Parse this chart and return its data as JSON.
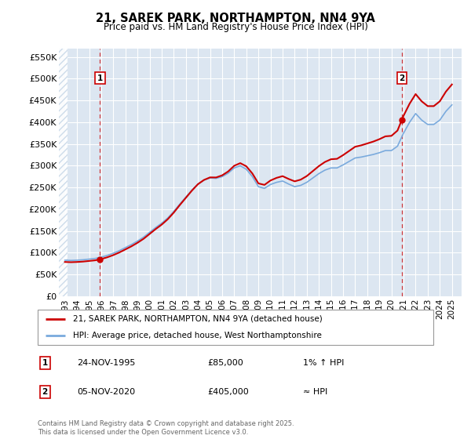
{
  "title": "21, SAREK PARK, NORTHAMPTON, NN4 9YA",
  "subtitle": "Price paid vs. HM Land Registry's House Price Index (HPI)",
  "ylim": [
    0,
    570000
  ],
  "yticks": [
    0,
    50000,
    100000,
    150000,
    200000,
    250000,
    300000,
    350000,
    400000,
    450000,
    500000,
    550000
  ],
  "ytick_labels": [
    "£0",
    "£50K",
    "£100K",
    "£150K",
    "£200K",
    "£250K",
    "£300K",
    "£350K",
    "£400K",
    "£450K",
    "£500K",
    "£550K"
  ],
  "xlim_start": 1992.5,
  "xlim_end": 2025.8,
  "xticks": [
    1993,
    1994,
    1995,
    1996,
    1997,
    1998,
    1999,
    2000,
    2001,
    2002,
    2003,
    2004,
    2005,
    2006,
    2007,
    2008,
    2009,
    2010,
    2011,
    2012,
    2013,
    2014,
    2015,
    2016,
    2017,
    2018,
    2019,
    2020,
    2021,
    2022,
    2023,
    2024,
    2025
  ],
  "bg_color": "#dce6f1",
  "hatch_color": "#c8d8e8",
  "grid_color": "#ffffff",
  "line_color_red": "#cc0000",
  "line_color_blue": "#7aaadd",
  "sale1_x": 1995.9,
  "sale1_y": 85000,
  "sale2_x": 2020.85,
  "sale2_y": 405000,
  "legend_label1": "21, SAREK PARK, NORTHAMPTON, NN4 9YA (detached house)",
  "legend_label2": "HPI: Average price, detached house, West Northamptonshire",
  "ann1_label": "1",
  "ann1_date": "24-NOV-1995",
  "ann1_price": "£85,000",
  "ann1_hpi": "1% ↑ HPI",
  "ann2_label": "2",
  "ann2_date": "05-NOV-2020",
  "ann2_price": "£405,000",
  "ann2_hpi": "≈ HPI",
  "footer": "Contains HM Land Registry data © Crown copyright and database right 2025.\nThis data is licensed under the Open Government Licence v3.0.",
  "hpi_x": [
    1992.5,
    1993.0,
    1993.5,
    1994.0,
    1994.5,
    1995.0,
    1995.5,
    1996.0,
    1996.5,
    1997.0,
    1997.5,
    1998.0,
    1998.5,
    1999.0,
    1999.5,
    2000.0,
    2000.5,
    2001.0,
    2001.5,
    2002.0,
    2002.5,
    2003.0,
    2003.5,
    2004.0,
    2004.5,
    2005.0,
    2005.5,
    2006.0,
    2006.5,
    2007.0,
    2007.5,
    2008.0,
    2008.5,
    2009.0,
    2009.5,
    2010.0,
    2010.5,
    2011.0,
    2011.5,
    2012.0,
    2012.5,
    2013.0,
    2013.5,
    2014.0,
    2014.5,
    2015.0,
    2015.5,
    2016.0,
    2016.5,
    2017.0,
    2017.5,
    2018.0,
    2018.5,
    2019.0,
    2019.5,
    2020.0,
    2020.5,
    2021.0,
    2021.5,
    2022.0,
    2022.5,
    2023.0,
    2023.5,
    2024.0,
    2024.5,
    2025.0
  ],
  "hpi_y": [
    84000,
    83000,
    82500,
    83000,
    84000,
    85500,
    87000,
    90000,
    94000,
    99000,
    105000,
    112000,
    119000,
    127000,
    136000,
    147000,
    158000,
    168000,
    180000,
    195000,
    212000,
    228000,
    244000,
    258000,
    267000,
    272000,
    271000,
    275000,
    283000,
    295000,
    300000,
    292000,
    275000,
    252000,
    248000,
    257000,
    262000,
    265000,
    258000,
    252000,
    255000,
    262000,
    272000,
    282000,
    290000,
    295000,
    295000,
    302000,
    310000,
    318000,
    320000,
    323000,
    326000,
    330000,
    335000,
    335000,
    345000,
    375000,
    400000,
    420000,
    405000,
    395000,
    395000,
    405000,
    425000,
    440000
  ]
}
